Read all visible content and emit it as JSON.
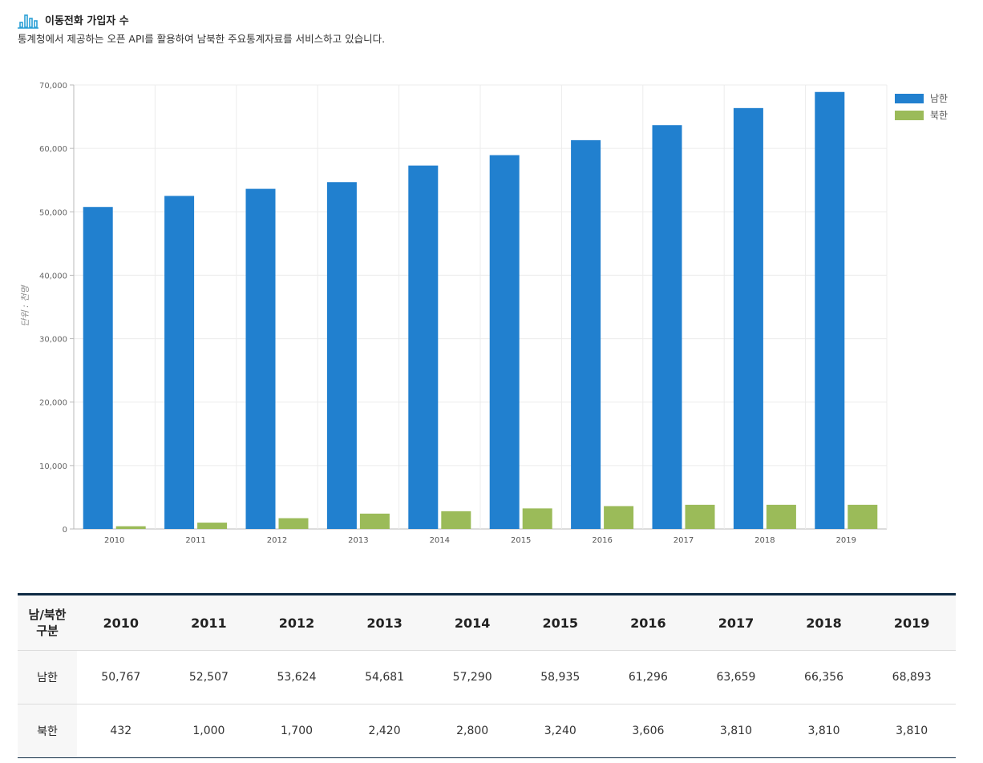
{
  "header": {
    "icon": "bar-chart-icon",
    "title": "이동전화 가입자 수",
    "subtitle": "통계청에서 제공하는 오픈 API를 활용하여 남북한 주요통계자료를 서비스하고 있습니다."
  },
  "chart_data": {
    "type": "bar",
    "title": "",
    "xlabel": "",
    "ylabel": "단위 : 천명",
    "categories": [
      "2010",
      "2011",
      "2012",
      "2013",
      "2014",
      "2015",
      "2016",
      "2017",
      "2018",
      "2019"
    ],
    "series": [
      {
        "name": "남한",
        "color": "#2180cf",
        "values": [
          50767,
          52507,
          53624,
          54681,
          57290,
          58935,
          61296,
          63659,
          66356,
          68893
        ]
      },
      {
        "name": "북한",
        "color": "#9bbb59",
        "values": [
          432,
          1000,
          1700,
          2420,
          2800,
          3240,
          3606,
          3810,
          3810,
          3810
        ]
      }
    ],
    "ylim": [
      0,
      70000
    ],
    "yticks": [
      "0",
      "10,000",
      "20,000",
      "30,000",
      "40,000",
      "50,000",
      "60,000",
      "70,000"
    ],
    "grid": true,
    "legend": "top-right"
  },
  "table": {
    "corner_line1": "남/북한",
    "corner_line2": "구분",
    "years": [
      "2010",
      "2011",
      "2012",
      "2013",
      "2014",
      "2015",
      "2016",
      "2017",
      "2018",
      "2019"
    ],
    "rows": [
      {
        "label": "남한",
        "values": [
          "50,767",
          "52,507",
          "53,624",
          "54,681",
          "57,290",
          "58,935",
          "61,296",
          "63,659",
          "66,356",
          "68,893"
        ]
      },
      {
        "label": "북한",
        "values": [
          "432",
          "1,000",
          "1,700",
          "2,420",
          "2,800",
          "3,240",
          "3,606",
          "3,810",
          "3,810",
          "3,810"
        ]
      }
    ]
  }
}
